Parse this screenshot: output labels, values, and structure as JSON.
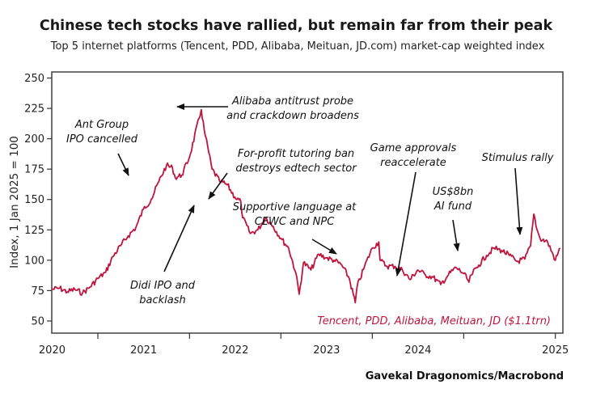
{
  "chart_data": {
    "type": "line",
    "title": "Chinese tech stocks have rallied, but remain far from their peak",
    "subtitle": "Top 5 internet platforms (Tencent, PDD, Alibaba, Meituan, JD.com) market-cap weighted index",
    "ylabel": "Index, 1 Jan 2025 = 100",
    "ylim": [
      40,
      255
    ],
    "yticks": [
      50,
      75,
      100,
      125,
      150,
      175,
      200,
      225,
      250
    ],
    "xlim": [
      "2019-07-01",
      "2025-01-31"
    ],
    "xticks": [
      "2020",
      "2021",
      "2022",
      "2023",
      "2024",
      "2025"
    ],
    "source": "Gavekal Dragonomics/Macrobond",
    "colors": {
      "series": "#c0143c",
      "axis": "#333333",
      "annot": "#111111"
    },
    "series": [
      {
        "label": "Tencent, PDD, Alibaba, Meituan, JD ($1.1trn)",
        "x": [
          "2019-07-01",
          "2019-08-01",
          "2019-09-01",
          "2019-10-01",
          "2019-11-01",
          "2019-12-01",
          "2020-01-01",
          "2020-02-01",
          "2020-03-01",
          "2020-04-01",
          "2020-05-01",
          "2020-06-01",
          "2020-07-01",
          "2020-08-01",
          "2020-09-01",
          "2020-10-01",
          "2020-10-25",
          "2020-11-05",
          "2020-12-01",
          "2021-01-01",
          "2021-02-17",
          "2021-03-01",
          "2021-04-01",
          "2021-05-01",
          "2021-06-01",
          "2021-07-01",
          "2021-07-25",
          "2021-08-01",
          "2021-09-01",
          "2021-10-01",
          "2021-11-01",
          "2021-12-01",
          "2022-01-01",
          "2022-02-01",
          "2022-03-01",
          "2022-03-15",
          "2022-04-01",
          "2022-05-01",
          "2022-06-01",
          "2022-07-01",
          "2022-08-01",
          "2022-09-01",
          "2022-10-01",
          "2022-10-25",
          "2022-11-01",
          "2022-12-01",
          "2023-01-01",
          "2023-01-27",
          "2023-02-01",
          "2023-03-01",
          "2023-04-01",
          "2023-05-01",
          "2023-06-01",
          "2023-07-01",
          "2023-08-01",
          "2023-09-01",
          "2023-10-01",
          "2023-11-01",
          "2023-12-01",
          "2024-01-01",
          "2024-01-22",
          "2024-02-01",
          "2024-03-01",
          "2024-04-01",
          "2024-05-01",
          "2024-06-01",
          "2024-07-01",
          "2024-08-01",
          "2024-09-01",
          "2024-09-24",
          "2024-10-07",
          "2024-10-20",
          "2024-11-01",
          "2024-12-01",
          "2025-01-01",
          "2025-01-20"
        ],
        "y": [
          76,
          77,
          74,
          76,
          73,
          78,
          85,
          90,
          103,
          112,
          120,
          127,
          142,
          150,
          165,
          178,
          176,
          168,
          170,
          185,
          224,
          207,
          175,
          165,
          162,
          152,
          148,
          135,
          122,
          125,
          135,
          128,
          118,
          110,
          90,
          72,
          98,
          92,
          105,
          102,
          100,
          96,
          85,
          65,
          78,
          95,
          110,
          115,
          100,
          95,
          95,
          92,
          84,
          92,
          88,
          86,
          80,
          88,
          94,
          89,
          82,
          88,
          96,
          104,
          110,
          108,
          104,
          99,
          101,
          112,
          138,
          125,
          118,
          115,
          100,
          110
        ]
      }
    ],
    "annotations": [
      {
        "lines": [
          "Ant Group",
          "IPO cancelled"
        ],
        "target": [
          "2020-11-05",
          168
        ]
      },
      {
        "lines": [
          "Alibaba antitrust probe",
          "and crackdown broadens"
        ],
        "target": [
          "2021-02-17",
          226
        ]
      },
      {
        "lines": [
          "For-profit tutoring ban",
          "destroys edtech sector"
        ],
        "target": [
          "2021-07-25",
          148
        ]
      },
      {
        "lines": [
          "Didi IPO and",
          "backlash"
        ],
        "target": [
          "2021-07-01",
          152
        ]
      },
      {
        "lines": [
          "Supportive language at",
          "CEWC and NPC"
        ],
        "target": [
          "2022-12-01",
          106
        ]
      },
      {
        "lines": [
          "Game approvals",
          "reaccelerate"
        ],
        "target": [
          "2023-01-27",
          83
        ]
      },
      {
        "lines": [
          "US$8bn",
          "AI fund"
        ],
        "target": [
          "2023-09-01",
          106
        ]
      },
      {
        "lines": [
          "Stimulus rally"
        ],
        "target": [
          "2024-09-24",
          124
        ]
      }
    ]
  }
}
